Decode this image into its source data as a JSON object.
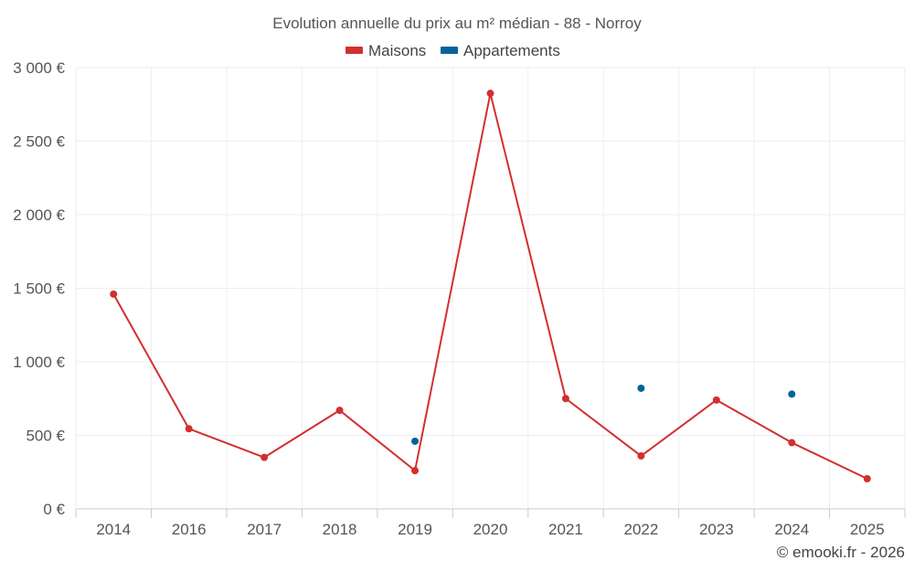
{
  "chart_data": {
    "type": "line",
    "title": "Evolution annuelle du prix au m² médian - 88 - Norroy",
    "categories": [
      "2014",
      "2016",
      "2017",
      "2018",
      "2019",
      "2020",
      "2021",
      "2022",
      "2023",
      "2024",
      "2025"
    ],
    "series": [
      {
        "name": "Maisons",
        "color": "#d32f2f",
        "style": "line-with-markers",
        "values": [
          1460,
          545,
          350,
          670,
          260,
          2825,
          750,
          360,
          740,
          450,
          205
        ]
      },
      {
        "name": "Appartements",
        "color": "#01649b",
        "style": "markers-only",
        "values": [
          null,
          null,
          null,
          null,
          460,
          null,
          null,
          820,
          null,
          780,
          null
        ]
      }
    ],
    "ylim": [
      0,
      3000
    ],
    "yticks": [
      0,
      500,
      1000,
      1500,
      2000,
      2500,
      3000
    ],
    "ytick_labels": [
      "0 €",
      "500 €",
      "1 000 €",
      "1 500 €",
      "2 000 €",
      "2 500 €",
      "3 000 €"
    ],
    "grid": true,
    "legend_position": "top-center"
  },
  "credit": "© emooki.fr - 2026"
}
